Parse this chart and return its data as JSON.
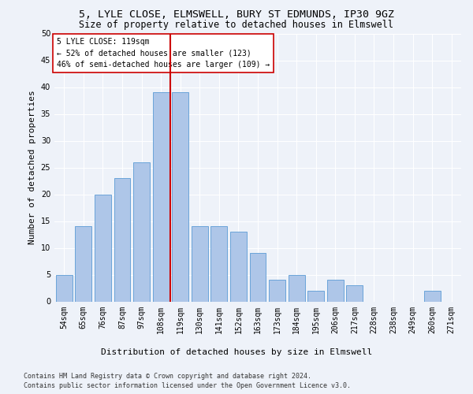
{
  "title": "5, LYLE CLOSE, ELMSWELL, BURY ST EDMUNDS, IP30 9GZ",
  "subtitle": "Size of property relative to detached houses in Elmswell",
  "xlabel": "Distribution of detached houses by size in Elmswell",
  "ylabel": "Number of detached properties",
  "categories": [
    "54sqm",
    "65sqm",
    "76sqm",
    "87sqm",
    "97sqm",
    "108sqm",
    "119sqm",
    "130sqm",
    "141sqm",
    "152sqm",
    "163sqm",
    "173sqm",
    "184sqm",
    "195sqm",
    "206sqm",
    "217sqm",
    "228sqm",
    "238sqm",
    "249sqm",
    "260sqm",
    "271sqm"
  ],
  "values": [
    5,
    14,
    20,
    23,
    26,
    39,
    39,
    14,
    14,
    13,
    9,
    4,
    5,
    2,
    4,
    3,
    0,
    0,
    0,
    2,
    0
  ],
  "bar_color": "#aec6e8",
  "bar_edge_color": "#5b9bd5",
  "vline_color": "#cc0000",
  "vline_index": 6,
  "ylim": [
    0,
    50
  ],
  "yticks": [
    0,
    5,
    10,
    15,
    20,
    25,
    30,
    35,
    40,
    45,
    50
  ],
  "annotation_title": "5 LYLE CLOSE: 119sqm",
  "annotation_line1": "← 52% of detached houses are smaller (123)",
  "annotation_line2": "46% of semi-detached houses are larger (109) →",
  "annotation_box_color": "#ffffff",
  "annotation_box_edge": "#cc0000",
  "footer_line1": "Contains HM Land Registry data © Crown copyright and database right 2024.",
  "footer_line2": "Contains public sector information licensed under the Open Government Licence v3.0.",
  "background_color": "#eef2f9",
  "plot_background": "#eef2f9",
  "grid_color": "#ffffff",
  "title_fontsize": 9.5,
  "subtitle_fontsize": 8.5,
  "ylabel_fontsize": 8,
  "xlabel_fontsize": 8,
  "tick_fontsize": 7,
  "annotation_fontsize": 7,
  "footer_fontsize": 6
}
